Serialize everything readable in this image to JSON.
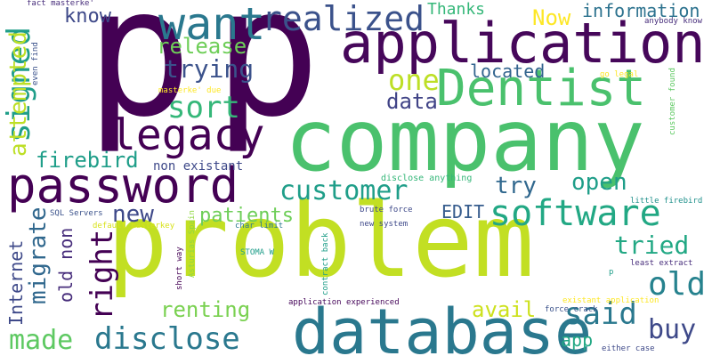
{
  "word_cloud": {
    "words": [
      {
        "text": "p",
        "color": "#440154"
      },
      {
        "text": "p",
        "color": "#440154"
      },
      {
        "text": "company",
        "color": "#4ac16d"
      },
      {
        "text": "problem",
        "color": "#c2df23"
      },
      {
        "text": "application",
        "color": "#46075a"
      },
      {
        "text": "database",
        "color": "#2a788e"
      },
      {
        "text": "password",
        "color": "#440154"
      },
      {
        "text": "Dentist",
        "color": "#4ac16d"
      },
      {
        "text": "software",
        "color": "#22a884"
      },
      {
        "text": "want",
        "color": "#2a788e"
      },
      {
        "text": "realized",
        "color": "#3b528b"
      },
      {
        "text": "legacy",
        "color": "#440154"
      },
      {
        "text": "customer",
        "color": "#1f9e89"
      },
      {
        "text": "disclose",
        "color": "#2a788e"
      },
      {
        "text": "signed",
        "color": "#1f9e89"
      },
      {
        "text": "old",
        "color": "#26828e"
      },
      {
        "text": "made",
        "color": "#5ec962"
      },
      {
        "text": "attempted",
        "color": "#bddf26"
      },
      {
        "text": "migrate",
        "color": "#31688e"
      },
      {
        "text": "right",
        "color": "#440154"
      },
      {
        "text": "said",
        "color": "#2a788e"
      },
      {
        "text": "renting",
        "color": "#7ad151"
      },
      {
        "text": "patients",
        "color": "#6ece58"
      },
      {
        "text": "trying",
        "color": "#3b528b"
      },
      {
        "text": "sort",
        "color": "#35b779"
      },
      {
        "text": "release",
        "color": "#6ece58"
      },
      {
        "text": "know",
        "color": "#3e4989"
      },
      {
        "text": "information",
        "color": "#2c728e"
      },
      {
        "text": "tried",
        "color": "#22a884"
      },
      {
        "text": "buy",
        "color": "#3e4989"
      },
      {
        "text": "avail",
        "color": "#cde11d"
      },
      {
        "text": "new",
        "color": "#3e4989"
      },
      {
        "text": "open",
        "color": "#1f9e89"
      },
      {
        "text": "try",
        "color": "#31688e"
      },
      {
        "text": "data",
        "color": "#414487"
      },
      {
        "text": "one",
        "color": "#bddf26"
      },
      {
        "text": "located",
        "color": "#32648e"
      },
      {
        "text": "firebird",
        "color": "#1f9e89"
      },
      {
        "text": "Now",
        "color": "#fde725"
      },
      {
        "text": "Thanks",
        "color": "#35b779"
      },
      {
        "text": "Internet",
        "color": "#3e4989"
      },
      {
        "text": "old non",
        "color": "#472d7b"
      },
      {
        "text": "app",
        "color": "#22a884"
      },
      {
        "text": "EDIT",
        "color": "#365c8d"
      },
      {
        "text": "non existant",
        "color": "#3e4989"
      },
      {
        "text": "fact masterke'",
        "color": "#472d7b"
      },
      {
        "text": "even find",
        "color": "#3b528b"
      },
      {
        "text": "masterke' due",
        "color": "#fde725"
      },
      {
        "text": "anybody know",
        "color": "#472d7b"
      },
      {
        "text": "go legal",
        "color": "#fde725"
      },
      {
        "text": "customer found",
        "color": "#5ec962"
      },
      {
        "text": "little firebird",
        "color": "#21918c"
      },
      {
        "text": "disclose anything",
        "color": "#35b779"
      },
      {
        "text": "SQL Servers",
        "color": "#3b528b"
      },
      {
        "text": "default masterkey",
        "color": "#d8e219"
      },
      {
        "text": "brute force",
        "color": "#3e4989"
      },
      {
        "text": "char limit",
        "color": "#2a788e"
      },
      {
        "text": "new system",
        "color": "#3e4989"
      },
      {
        "text": "contract back",
        "color": "#1f9e89"
      },
      {
        "text": "Asturias Spain",
        "color": "#90d743"
      },
      {
        "text": "STOMA W",
        "color": "#1f9e89"
      },
      {
        "text": "short way",
        "color": "#440154"
      },
      {
        "text": "least extract",
        "color": "#472d7b"
      },
      {
        "text": "existant application",
        "color": "#fde725"
      },
      {
        "text": "application experienced",
        "color": "#46075a"
      },
      {
        "text": "force crack",
        "color": "#3b528b"
      },
      {
        "text": "either case",
        "color": "#3e4989"
      },
      {
        "text": "p",
        "color": "#1f9e89"
      }
    ]
  }
}
